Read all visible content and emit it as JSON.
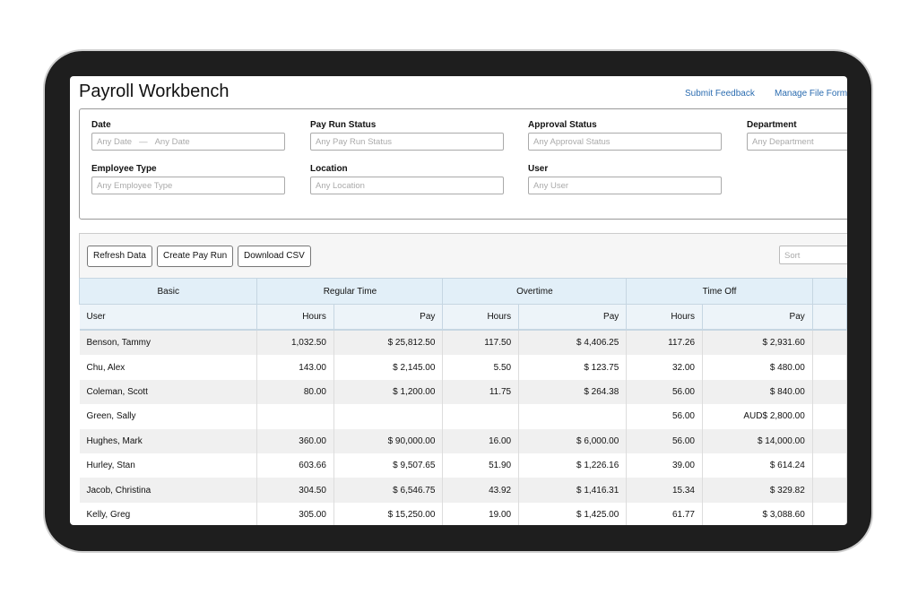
{
  "header": {
    "title": "Payroll Workbench",
    "links": [
      "Submit Feedback",
      "Manage File Form"
    ]
  },
  "filters": [
    {
      "label": "Date",
      "from": "Any Date",
      "separator": "—",
      "to": "Any Date"
    },
    {
      "label": "Pay Run Status",
      "placeholder": "Any Pay Run Status"
    },
    {
      "label": "Approval Status",
      "placeholder": "Any Approval Status"
    },
    {
      "label": "Department",
      "placeholder": "Any Department"
    },
    {
      "label": "Employee Type",
      "placeholder": "Any Employee Type"
    },
    {
      "label": "Location",
      "placeholder": "Any Location"
    },
    {
      "label": "User",
      "placeholder": "Any User"
    }
  ],
  "toolbar": {
    "buttons": [
      "Refresh Data",
      "Create Pay Run",
      "Download CSV"
    ],
    "sort": "Sort"
  },
  "table": {
    "groups": [
      "Basic",
      "Regular Time",
      "Overtime",
      "Time Off"
    ],
    "columns": [
      "User",
      "Hours",
      "Pay",
      "Hours",
      "Pay",
      "Hours",
      "Pay"
    ],
    "rows": [
      [
        "Benson, Tammy",
        "1,032.50",
        "$ 25,812.50",
        "117.50",
        "$ 4,406.25",
        "117.26",
        "$ 2,931.60"
      ],
      [
        "Chu, Alex",
        "143.00",
        "$ 2,145.00",
        "5.50",
        "$ 123.75",
        "32.00",
        "$ 480.00"
      ],
      [
        "Coleman, Scott",
        "80.00",
        "$ 1,200.00",
        "11.75",
        "$ 264.38",
        "56.00",
        "$ 840.00"
      ],
      [
        "Green, Sally",
        null,
        null,
        null,
        null,
        "56.00",
        "AUD$ 2,800.00"
      ],
      [
        "Hughes, Mark",
        "360.00",
        "$ 90,000.00",
        "16.00",
        "$ 6,000.00",
        "56.00",
        "$ 14,000.00"
      ],
      [
        "Hurley, Stan",
        "603.66",
        "$ 9,507.65",
        "51.90",
        "$ 1,226.16",
        "39.00",
        "$ 614.24"
      ],
      [
        "Jacob, Christina",
        "304.50",
        "$ 6,546.75",
        "43.92",
        "$ 1,416.31",
        "15.34",
        "$ 329.82"
      ],
      [
        "Kelly, Greg",
        "305.00",
        "$ 15,250.00",
        "19.00",
        "$ 1,425.00",
        "61.77",
        "$ 3,088.60"
      ]
    ]
  }
}
